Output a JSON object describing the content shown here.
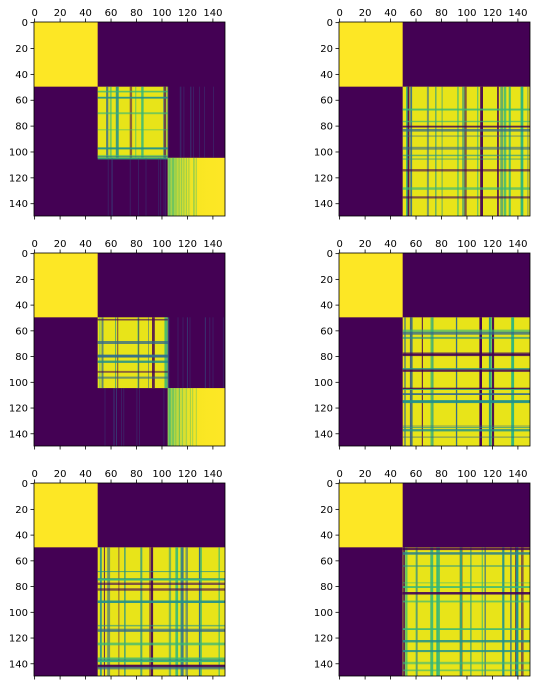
{
  "colors": {
    "low": "#440154",
    "mid_low": "#31688e",
    "mid": "#21918c",
    "mid_high": "#35b779",
    "high": "#fde725",
    "high_alt": "#e8e419"
  },
  "chart_data": [
    {
      "type": "heatmap",
      "panel": "top-left",
      "x_ticks": [
        0,
        20,
        40,
        60,
        80,
        100,
        120,
        140
      ],
      "y_ticks": [
        0,
        20,
        40,
        60,
        80,
        100,
        120,
        140
      ],
      "x_tick_position": "top",
      "xlim": [
        0,
        150
      ],
      "ylim": [
        150,
        0
      ],
      "colormap": "viridis",
      "blocks": [
        {
          "x": [
            0,
            50
          ],
          "y": [
            0,
            50
          ],
          "value": 1.0
        },
        {
          "x": [
            50,
            105
          ],
          "y": [
            50,
            105
          ],
          "value": 0.85,
          "texture": "striped"
        },
        {
          "x": [
            105,
            150
          ],
          "y": [
            105,
            150
          ],
          "value": 0.9,
          "texture": "gradient"
        },
        {
          "x": [
            50,
            105
          ],
          "y": [
            105,
            150
          ],
          "value": 0.1,
          "texture": "faint"
        },
        {
          "x": [
            105,
            150
          ],
          "y": [
            50,
            105
          ],
          "value": 0.1,
          "texture": "faint"
        }
      ]
    },
    {
      "type": "heatmap",
      "panel": "top-right",
      "x_ticks": [
        0,
        20,
        40,
        60,
        80,
        100,
        120,
        140
      ],
      "y_ticks": [
        0,
        20,
        40,
        60,
        80,
        100,
        120,
        140
      ],
      "x_tick_position": "top",
      "xlim": [
        0,
        150
      ],
      "ylim": [
        150,
        0
      ],
      "colormap": "viridis",
      "blocks": [
        {
          "x": [
            0,
            50
          ],
          "y": [
            0,
            50
          ],
          "value": 1.0
        },
        {
          "x": [
            50,
            150
          ],
          "y": [
            50,
            150
          ],
          "value": 0.75,
          "texture": "striped"
        }
      ]
    },
    {
      "type": "heatmap",
      "panel": "middle-left",
      "x_ticks": [
        0,
        20,
        40,
        60,
        80,
        100,
        120,
        140
      ],
      "y_ticks": [
        0,
        20,
        40,
        60,
        80,
        100,
        120,
        140
      ],
      "x_tick_position": "top",
      "xlim": [
        0,
        150
      ],
      "ylim": [
        150,
        0
      ],
      "colormap": "viridis",
      "blocks": [
        {
          "x": [
            0,
            50
          ],
          "y": [
            0,
            50
          ],
          "value": 1.0
        },
        {
          "x": [
            50,
            105
          ],
          "y": [
            50,
            105
          ],
          "value": 0.85,
          "texture": "striped"
        },
        {
          "x": [
            105,
            150
          ],
          "y": [
            105,
            150
          ],
          "value": 0.9,
          "texture": "gradient"
        },
        {
          "x": [
            50,
            105
          ],
          "y": [
            105,
            150
          ],
          "value": 0.1,
          "texture": "faint"
        },
        {
          "x": [
            105,
            150
          ],
          "y": [
            50,
            105
          ],
          "value": 0.1,
          "texture": "faint"
        }
      ]
    },
    {
      "type": "heatmap",
      "panel": "middle-right",
      "x_ticks": [
        0,
        20,
        40,
        60,
        80,
        100,
        120,
        140
      ],
      "y_ticks": [
        0,
        20,
        40,
        60,
        80,
        100,
        120,
        140
      ],
      "x_tick_position": "top",
      "xlim": [
        0,
        150
      ],
      "ylim": [
        150,
        0
      ],
      "colormap": "viridis",
      "blocks": [
        {
          "x": [
            0,
            50
          ],
          "y": [
            0,
            50
          ],
          "value": 1.0
        },
        {
          "x": [
            50,
            150
          ],
          "y": [
            50,
            150
          ],
          "value": 0.75,
          "texture": "striped"
        }
      ]
    },
    {
      "type": "heatmap",
      "panel": "bottom-left",
      "x_ticks": [
        0,
        20,
        40,
        60,
        80,
        100,
        120,
        140
      ],
      "y_ticks": [
        0,
        20,
        40,
        60,
        80,
        100,
        120,
        140
      ],
      "x_tick_position": "top",
      "xlim": [
        0,
        150
      ],
      "ylim": [
        150,
        0
      ],
      "colormap": "viridis",
      "blocks": [
        {
          "x": [
            0,
            50
          ],
          "y": [
            0,
            50
          ],
          "value": 1.0
        },
        {
          "x": [
            50,
            150
          ],
          "y": [
            50,
            150
          ],
          "value": 0.75,
          "texture": "striped"
        }
      ]
    },
    {
      "type": "heatmap",
      "panel": "bottom-right",
      "x_ticks": [
        0,
        20,
        40,
        60,
        80,
        100,
        120,
        140
      ],
      "y_ticks": [
        0,
        20,
        40,
        60,
        80,
        100,
        120,
        140
      ],
      "x_tick_position": "top",
      "xlim": [
        0,
        150
      ],
      "ylim": [
        150,
        0
      ],
      "colormap": "viridis",
      "blocks": [
        {
          "x": [
            0,
            50
          ],
          "y": [
            0,
            50
          ],
          "value": 1.0
        },
        {
          "x": [
            50,
            150
          ],
          "y": [
            50,
            150
          ],
          "value": 0.75,
          "texture": "striped"
        }
      ]
    }
  ]
}
